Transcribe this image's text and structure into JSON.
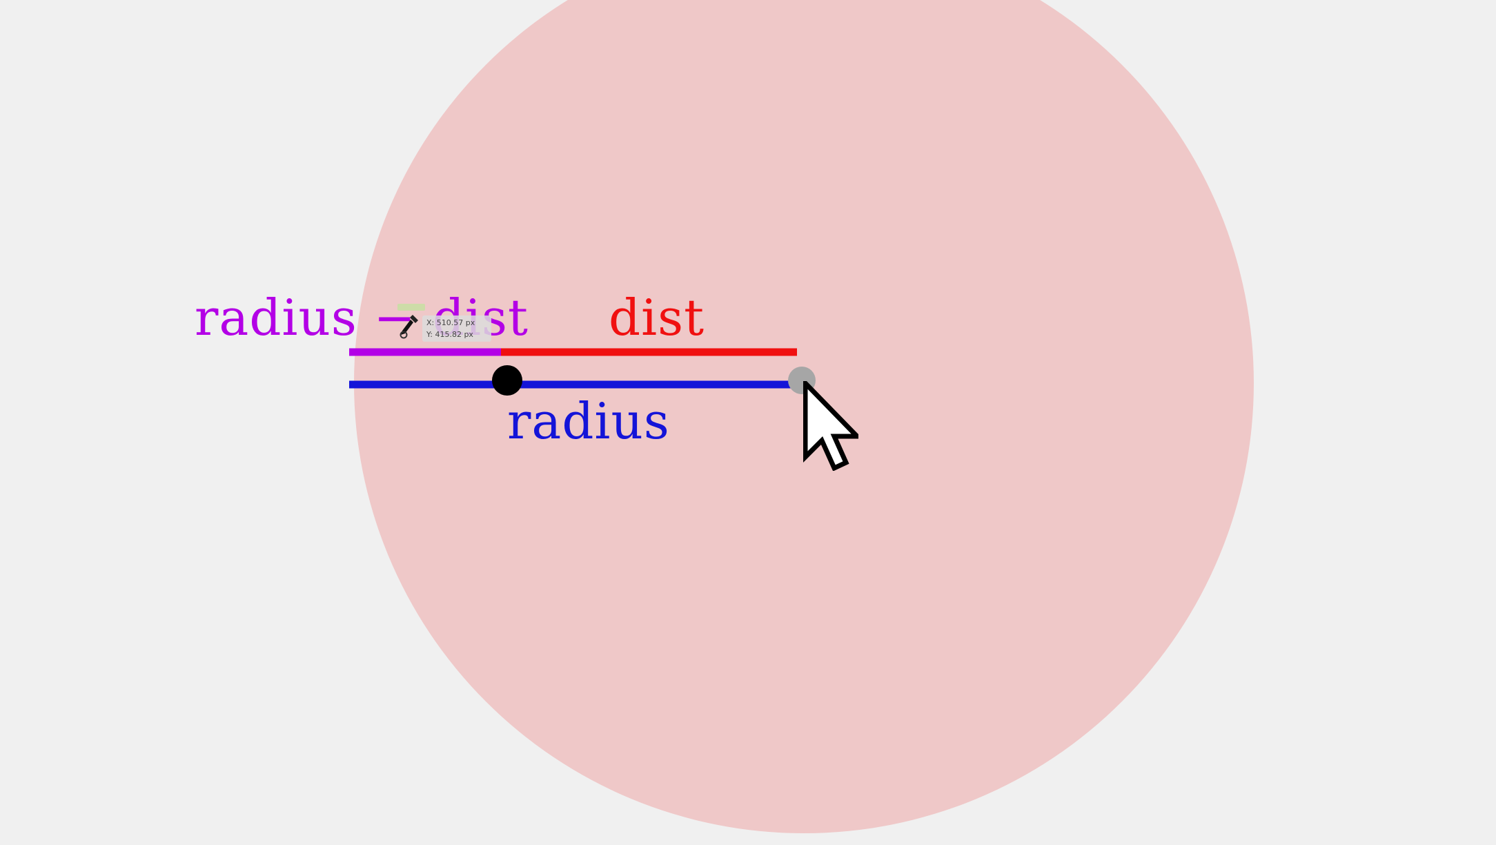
{
  "diagram": {
    "labels": {
      "radius_minus_dist": "radius − dist",
      "dist": "dist",
      "radius": "radius"
    },
    "colors": {
      "background": "#f0f0f0",
      "circle_fill": "#efc8c8",
      "radius_minus_dist_color": "#b300e6",
      "dist_color": "#f01010",
      "radius_color": "#1414d8",
      "center_point_color": "#000000",
      "handle_point_color": "#a6a6a6"
    },
    "icons": {
      "eyedropper": "eyedropper-icon",
      "cursor": "mouse-cursor-icon"
    }
  },
  "tooltip": {
    "x_readout": "X: 510.57 px",
    "y_readout": "Y: 415.82 px"
  }
}
